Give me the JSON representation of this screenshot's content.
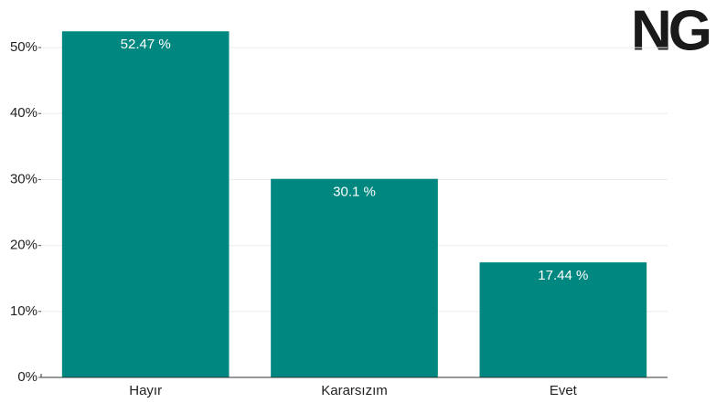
{
  "chart_data": {
    "type": "bar",
    "logo": "NG",
    "categories": [
      "Hayır",
      "Kararsızım",
      "Evet"
    ],
    "values": [
      52.47,
      30.1,
      17.44
    ],
    "value_labels": [
      "52.47 %",
      "30.1 %",
      "17.44 %"
    ],
    "color": "#00877f",
    "ylim": [
      0,
      55
    ],
    "yticks": [
      {
        "value": 0,
        "label": "0%"
      },
      {
        "value": 10,
        "label": "10%"
      },
      {
        "value": 20,
        "label": "20%"
      },
      {
        "value": 30,
        "label": "30%"
      },
      {
        "value": 40,
        "label": "40%"
      },
      {
        "value": 50,
        "label": "50%"
      }
    ],
    "grid": true
  }
}
